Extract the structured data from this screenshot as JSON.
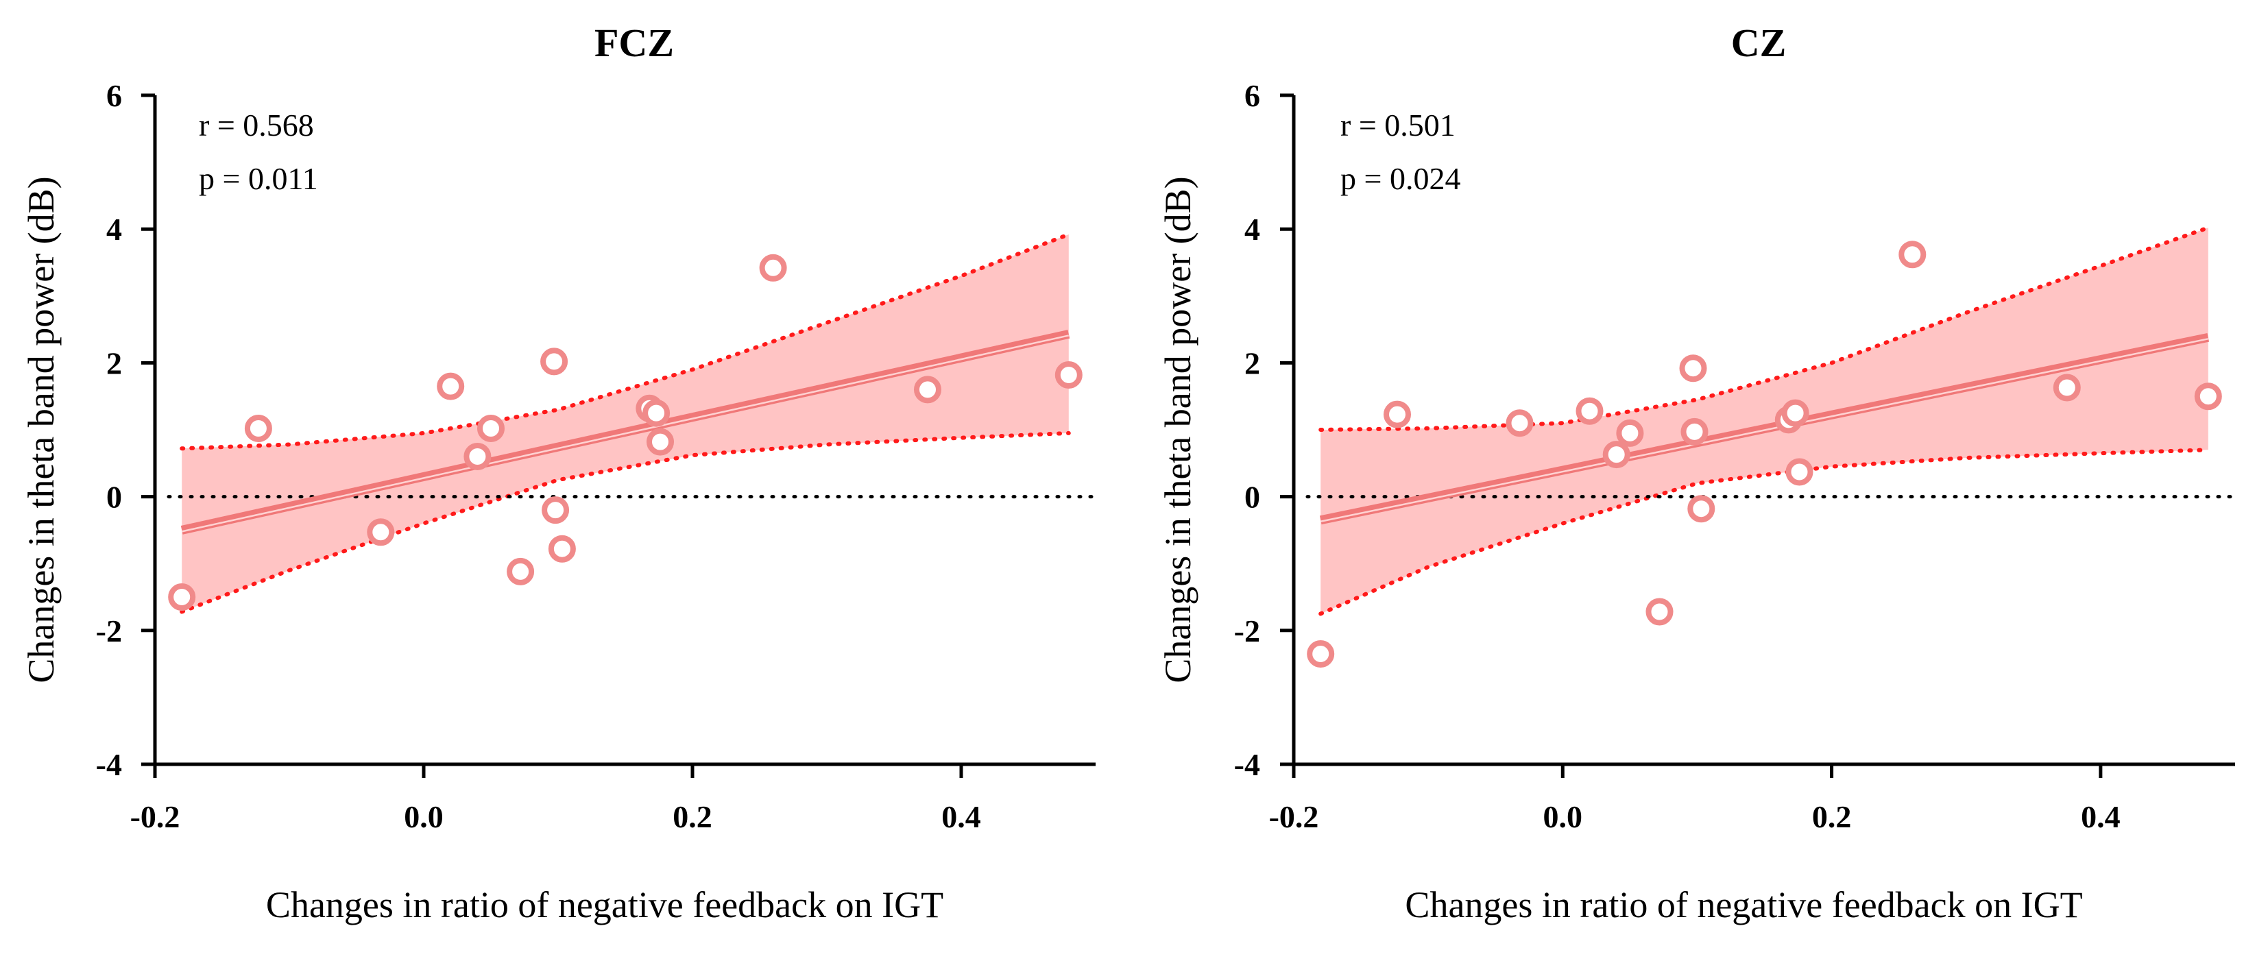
{
  "chart_data": [
    {
      "type": "scatter",
      "title": "FCZ",
      "xlabel": "Changes in ratio of negative feedback on IGT",
      "ylabel": "Changes in theta band power (dB)",
      "xlim": [
        -0.2,
        0.5
      ],
      "ylim": [
        -4,
        6
      ],
      "xticks": [
        -0.2,
        0.0,
        0.2,
        0.4
      ],
      "xtick_labels": [
        "-0.2",
        "0.0",
        "0.2",
        "0.4"
      ],
      "yticks": [
        -4,
        -2,
        0,
        2,
        4,
        6
      ],
      "ytick_labels": [
        "-4",
        "-2",
        "0",
        "2",
        "4",
        "6"
      ],
      "stats": {
        "r": "r = 0.568",
        "p": "p = 0.011"
      },
      "points": [
        {
          "x": -0.18,
          "y": -1.5
        },
        {
          "x": -0.123,
          "y": 1.02
        },
        {
          "x": -0.032,
          "y": -0.53
        },
        {
          "x": 0.02,
          "y": 1.65
        },
        {
          "x": 0.04,
          "y": 0.6
        },
        {
          "x": 0.05,
          "y": 1.02
        },
        {
          "x": 0.072,
          "y": -1.12
        },
        {
          "x": 0.097,
          "y": 2.02
        },
        {
          "x": 0.098,
          "y": -0.2
        },
        {
          "x": 0.103,
          "y": -0.78
        },
        {
          "x": 0.168,
          "y": 1.32
        },
        {
          "x": 0.173,
          "y": 1.25
        },
        {
          "x": 0.176,
          "y": 0.82
        },
        {
          "x": 0.26,
          "y": 3.42
        },
        {
          "x": 0.375,
          "y": 1.6
        },
        {
          "x": 0.48,
          "y": 1.82
        }
      ],
      "fit": {
        "x": [
          -0.18,
          0.48
        ],
        "y": [
          -0.5,
          2.43
        ]
      },
      "ci_upper": {
        "x": [
          -0.18,
          -0.1,
          0.0,
          0.1,
          0.2,
          0.3,
          0.4,
          0.48
        ],
        "y": [
          0.72,
          0.78,
          0.95,
          1.3,
          1.9,
          2.6,
          3.3,
          3.92
        ]
      },
      "ci_lower": {
        "x": [
          -0.18,
          -0.1,
          0.0,
          0.1,
          0.2,
          0.3,
          0.4,
          0.48
        ],
        "y": [
          -1.72,
          -1.1,
          -0.4,
          0.25,
          0.62,
          0.78,
          0.88,
          0.95
        ]
      },
      "zero_line": 0
    },
    {
      "type": "scatter",
      "title": "CZ",
      "xlabel": "Changes in ratio of negative feedback on IGT",
      "ylabel": "Changes in theta band power (dB)",
      "xlim": [
        -0.2,
        0.5
      ],
      "ylim": [
        -4,
        6
      ],
      "xticks": [
        -0.2,
        0.0,
        0.2,
        0.4
      ],
      "xtick_labels": [
        "-0.2",
        "0.0",
        "0.2",
        "0.4"
      ],
      "yticks": [
        -4,
        -2,
        0,
        2,
        4,
        6
      ],
      "ytick_labels": [
        "-4",
        "-2",
        "0",
        "2",
        "4",
        "6"
      ],
      "stats": {
        "r": "r = 0.501",
        "p": "p = 0.024"
      },
      "points": [
        {
          "x": -0.18,
          "y": -2.35
        },
        {
          "x": -0.123,
          "y": 1.23
        },
        {
          "x": -0.032,
          "y": 1.1
        },
        {
          "x": 0.02,
          "y": 1.28
        },
        {
          "x": 0.04,
          "y": 0.63
        },
        {
          "x": 0.05,
          "y": 0.95
        },
        {
          "x": 0.072,
          "y": -1.72
        },
        {
          "x": 0.097,
          "y": 1.92
        },
        {
          "x": 0.098,
          "y": 0.97
        },
        {
          "x": 0.103,
          "y": -0.18
        },
        {
          "x": 0.168,
          "y": 1.15
        },
        {
          "x": 0.173,
          "y": 1.25
        },
        {
          "x": 0.176,
          "y": 0.37
        },
        {
          "x": 0.26,
          "y": 3.62
        },
        {
          "x": 0.375,
          "y": 1.63
        },
        {
          "x": 0.48,
          "y": 1.5
        }
      ],
      "fit": {
        "x": [
          -0.18,
          0.48
        ],
        "y": [
          -0.35,
          2.38
        ]
      },
      "ci_upper": {
        "x": [
          -0.18,
          -0.1,
          0.0,
          0.1,
          0.2,
          0.3,
          0.4,
          0.48
        ],
        "y": [
          1.0,
          1.02,
          1.1,
          1.45,
          2.0,
          2.75,
          3.45,
          4.02
        ]
      },
      "ci_lower": {
        "x": [
          -0.18,
          -0.1,
          0.0,
          0.1,
          0.2,
          0.3,
          0.4,
          0.48
        ],
        "y": [
          -1.75,
          -1.05,
          -0.4,
          0.2,
          0.45,
          0.58,
          0.65,
          0.7
        ]
      },
      "zero_line": 0
    }
  ],
  "colors": {
    "marker_stroke": "#f08a8a",
    "marker_fill": "#ffffff",
    "band_fill": "#ffc4c4",
    "ci_line": "#ff1a1a",
    "fit_line": "#f07878",
    "axis": "#000000",
    "zero_line": "#000000"
  }
}
